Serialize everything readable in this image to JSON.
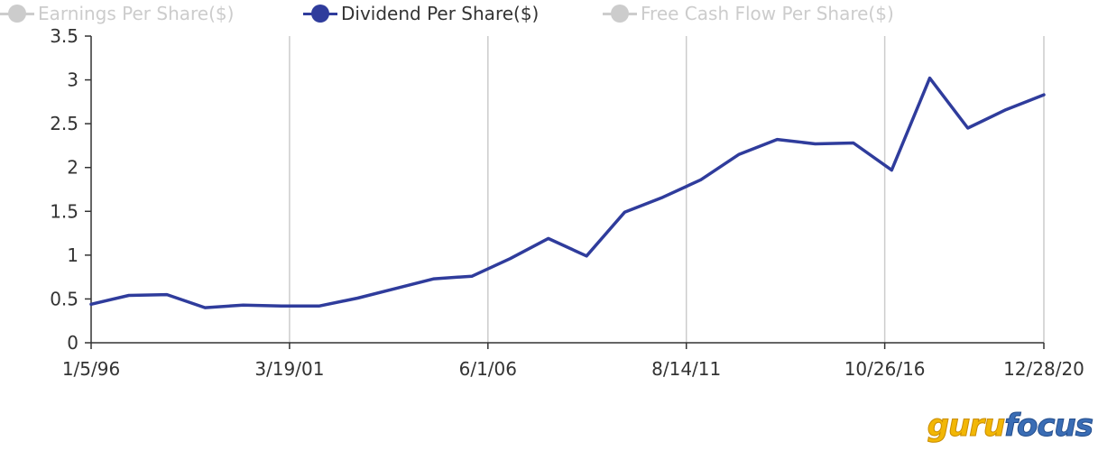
{
  "legend": [
    {
      "label": "Earnings Per Share($)",
      "active": false
    },
    {
      "label": "Dividend Per Share($)",
      "active": true
    },
    {
      "label": "Free Cash Flow Per Share($)",
      "active": false
    }
  ],
  "colors": {
    "series": "#2f3c9c",
    "inactive": "#cccccc",
    "grid": "#cccccc",
    "axis": "#333333"
  },
  "logo": {
    "part1": "guru",
    "part2": "focus"
  },
  "chart_data": {
    "type": "line",
    "xlabel": "",
    "ylabel": "",
    "ylim": [
      0,
      3.5
    ],
    "yticks": [
      0,
      0.5,
      1,
      1.5,
      2,
      2.5,
      3,
      3.5
    ],
    "ytick_labels": [
      "0",
      "0.5",
      "1",
      "1.5",
      "2",
      "2.5",
      "3",
      "3.5"
    ],
    "xlim": [
      "1996-01-05",
      "2020-12-28"
    ],
    "xticks": [
      "1996-01-05",
      "2001-03-19",
      "2006-06-01",
      "2011-08-14",
      "2016-10-26",
      "2020-12-28"
    ],
    "xtick_labels": [
      "1/5/96",
      "3/19/01",
      "6/1/06",
      "8/14/11",
      "10/26/16",
      "12/28/20"
    ],
    "grid": "vertical",
    "series": [
      {
        "name": "Dividend Per Share($)",
        "x": [
          "1996-01-05",
          "1996-12-31",
          "1997-12-31",
          "1998-12-31",
          "1999-12-31",
          "2000-12-31",
          "2001-12-31",
          "2002-12-31",
          "2003-12-31",
          "2004-12-31",
          "2005-12-31",
          "2006-12-31",
          "2007-12-31",
          "2008-12-31",
          "2009-12-31",
          "2010-12-31",
          "2011-12-31",
          "2012-12-31",
          "2013-12-31",
          "2014-12-31",
          "2015-12-31",
          "2016-12-31",
          "2017-12-31",
          "2018-12-31",
          "2019-12-31",
          "2020-12-28"
        ],
        "values": [
          0.44,
          0.54,
          0.55,
          0.4,
          0.43,
          0.42,
          0.42,
          0.51,
          0.62,
          0.73,
          0.76,
          0.96,
          1.19,
          0.99,
          1.49,
          1.66,
          1.86,
          2.15,
          2.32,
          2.27,
          2.28,
          1.97,
          3.02,
          2.45,
          2.66,
          2.83
        ]
      }
    ]
  }
}
